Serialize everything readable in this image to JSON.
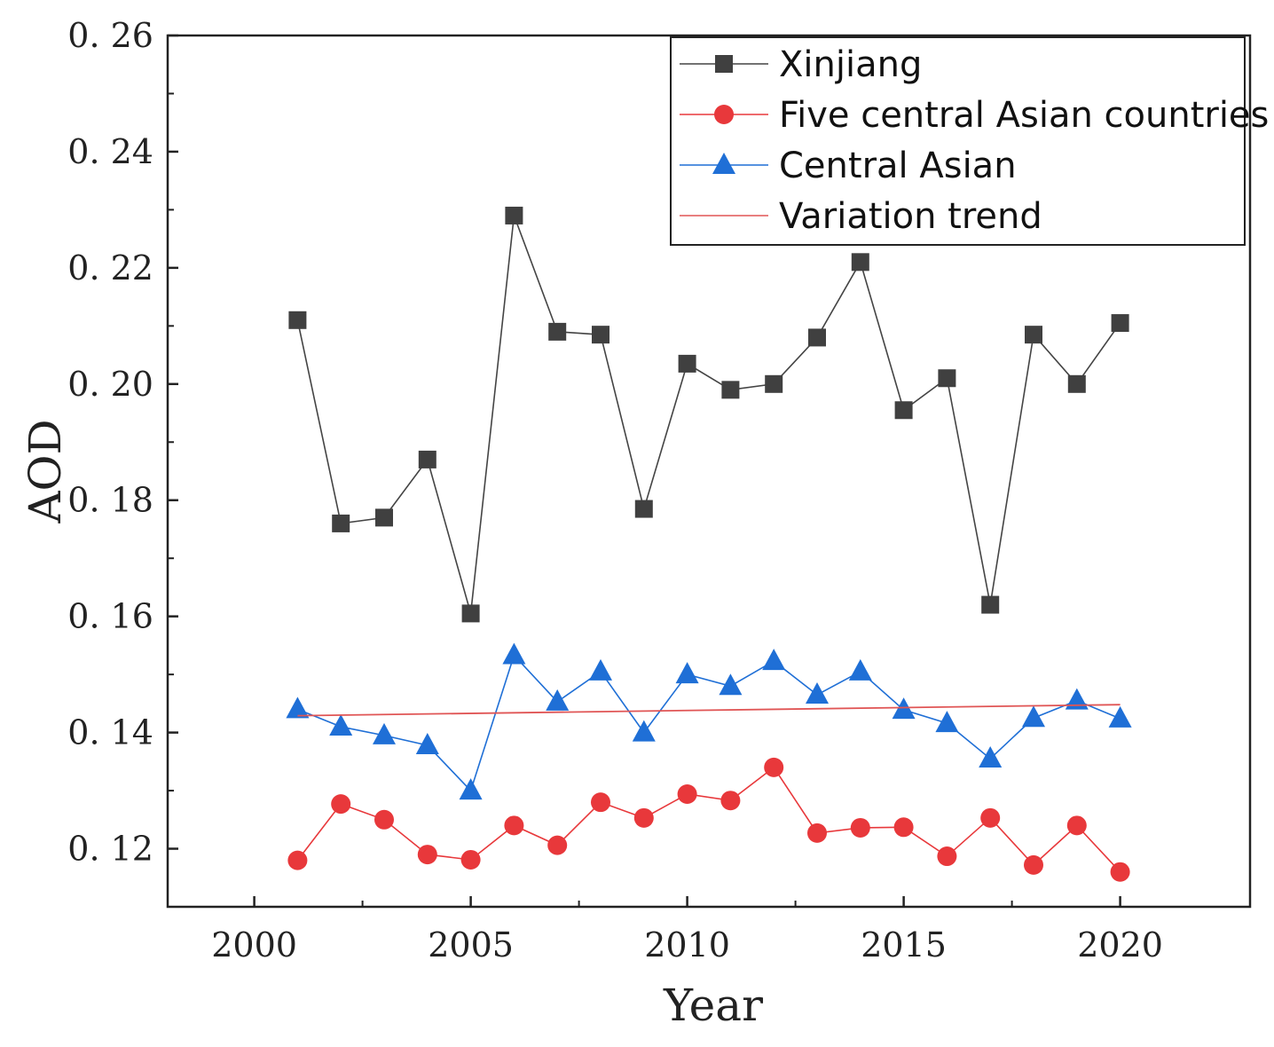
{
  "chart_data": {
    "type": "line",
    "xlabel": "Year",
    "ylabel": "AOD",
    "xlim": [
      1998,
      2023
    ],
    "ylim": [
      0.11,
      0.26
    ],
    "xticks": [
      2000,
      2005,
      2010,
      2015,
      2020
    ],
    "xtick_labels": [
      "2000",
      "2005",
      "2010",
      "2015",
      "2020"
    ],
    "yticks": [
      0.12,
      0.14,
      0.16,
      0.18,
      0.2,
      0.22,
      0.24,
      0.26
    ],
    "ytick_labels": [
      "0. 12",
      "0. 14",
      "0. 16",
      "0. 18",
      "0. 20",
      "0. 22",
      "0. 24",
      "0. 26"
    ],
    "x": [
      2001,
      2002,
      2003,
      2004,
      2005,
      2006,
      2007,
      2008,
      2009,
      2010,
      2011,
      2012,
      2013,
      2014,
      2015,
      2016,
      2017,
      2018,
      2019,
      2020
    ],
    "series": [
      {
        "name": "Xinjiang",
        "marker": "square",
        "color": "#404040",
        "values": [
          0.211,
          0.176,
          0.177,
          0.187,
          0.1605,
          0.229,
          0.209,
          0.2085,
          0.1785,
          0.2035,
          0.199,
          0.2,
          0.208,
          0.221,
          0.1955,
          0.201,
          0.162,
          0.2085,
          0.2,
          0.2105
        ]
      },
      {
        "name": "Five central Asian countries",
        "marker": "circle",
        "color": "#e8383b",
        "values": [
          0.118,
          0.1277,
          0.125,
          0.119,
          0.1181,
          0.124,
          0.1206,
          0.128,
          0.1253,
          0.1294,
          0.1283,
          0.134,
          0.1227,
          0.1236,
          0.1237,
          0.1187,
          0.1253,
          0.1172,
          0.124,
          0.116
        ]
      },
      {
        "name": "Central Asian",
        "marker": "triangle",
        "color": "#1f6fd6",
        "values": [
          0.144,
          0.141,
          0.1395,
          0.1378,
          0.13,
          0.1533,
          0.1453,
          0.1505,
          0.14,
          0.15,
          0.148,
          0.1523,
          0.1465,
          0.1505,
          0.1439,
          0.1416,
          0.1355,
          0.1425,
          0.1455,
          0.1424
        ]
      }
    ],
    "trend": {
      "name": "Variation trend",
      "color": "#e05555",
      "x": [
        2001,
        2020
      ],
      "y": [
        0.1429,
        0.1448
      ]
    },
    "legend_position": "top-right"
  }
}
